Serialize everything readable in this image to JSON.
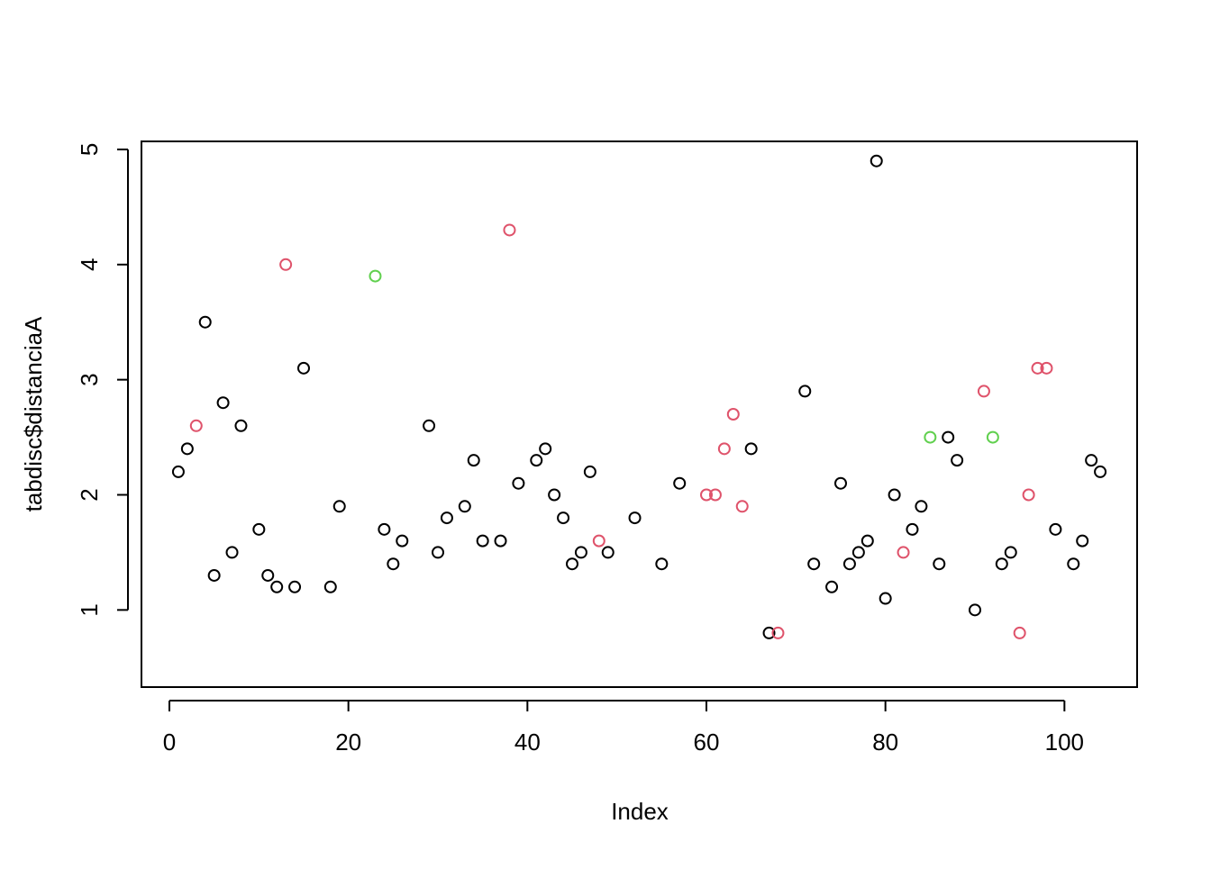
{
  "chart_data": {
    "type": "scatter",
    "x_label": "Index",
    "y_label": "tabdisc$distanciaA",
    "xlim": [
      -3.12,
      108.12
    ],
    "ylim": [
      0.33,
      5.07
    ],
    "xticks": [
      0,
      20,
      40,
      60,
      80,
      100
    ],
    "yticks": [
      1,
      2,
      3,
      4,
      5
    ],
    "series": [
      {
        "color": "#000000",
        "x": [
          1,
          2,
          4,
          5,
          6,
          7,
          8,
          10,
          11,
          12,
          14,
          15,
          18,
          19,
          24,
          25,
          26,
          29,
          30,
          31,
          33,
          34,
          35,
          37,
          39,
          41,
          42,
          43,
          44,
          45,
          46,
          47,
          49,
          52,
          55,
          57,
          65,
          67,
          71,
          72,
          74,
          75,
          76,
          77,
          78,
          79,
          80,
          81,
          83,
          84,
          86,
          87,
          88,
          90,
          93,
          94,
          99,
          101,
          102,
          103,
          104
        ],
        "values": [
          2.2,
          2.4,
          3.5,
          1.3,
          2.8,
          1.5,
          2.6,
          1.7,
          1.3,
          1.2,
          1.2,
          3.1,
          1.2,
          1.9,
          1.7,
          1.4,
          1.6,
          2.6,
          1.5,
          1.8,
          1.9,
          2.3,
          1.6,
          1.6,
          2.1,
          2.3,
          2.4,
          2.0,
          1.8,
          1.4,
          1.5,
          2.2,
          1.5,
          1.8,
          1.4,
          2.1,
          2.4,
          0.8,
          2.9,
          1.4,
          1.2,
          2.1,
          1.4,
          1.5,
          1.6,
          4.9,
          1.1,
          2.0,
          1.7,
          1.9,
          1.4,
          2.5,
          2.3,
          1.0,
          1.4,
          1.5,
          1.7,
          1.4,
          1.6,
          2.3,
          2.2
        ]
      },
      {
        "color": "#DF536B",
        "x": [
          3,
          13,
          38,
          48,
          60,
          61,
          62,
          63,
          64,
          68,
          82,
          91,
          95,
          96,
          97,
          98
        ],
        "values": [
          2.6,
          4.0,
          4.3,
          1.6,
          2.0,
          2.0,
          2.4,
          2.7,
          1.9,
          0.8,
          1.5,
          2.9,
          0.8,
          2.0,
          3.1,
          3.1
        ]
      },
      {
        "color": "#61D04F",
        "x": [
          23,
          85,
          92
        ],
        "values": [
          3.9,
          2.5,
          2.5
        ]
      }
    ]
  }
}
